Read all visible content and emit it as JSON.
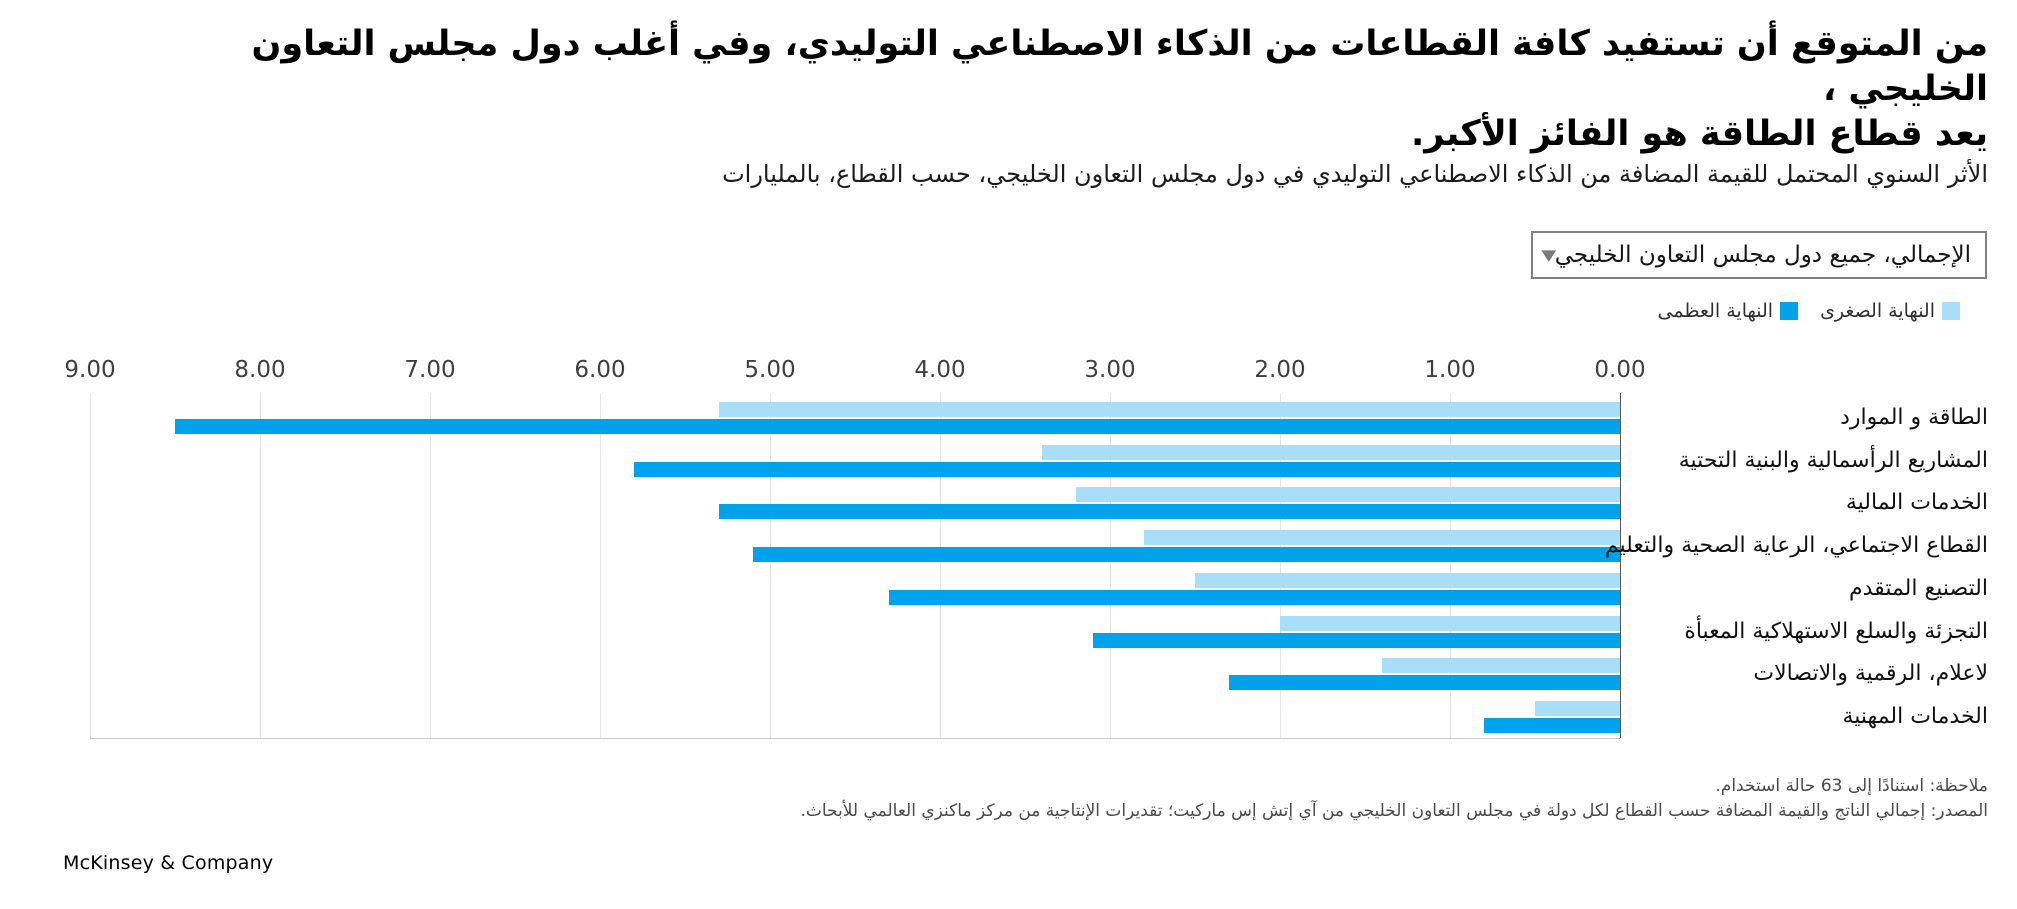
{
  "title": {
    "line1": "من المتوقع أن تستفيد كافة القطاعات من الذكاء الاصطناعي التوليدي، وفي أغلب دول مجلس التعاون الخليجي ،",
    "line2": "يعد قطاع الطاقة هو الفائز الأكبر."
  },
  "subtitle": "الأثر السنوي المحتمل للقيمة المضافة من الذكاء الاصطناعي التوليدي في دول مجلس التعاون الخليجي، حسب القطاع، بالمليارات",
  "dropdown": {
    "selected": "الإجمالي، جميع دول مجلس التعاون الخليجي",
    "arrow": "▼"
  },
  "legend": [
    {
      "label": "النهاية الصغرى",
      "color": "#a9def8"
    },
    {
      "label": "النهاية العظمى",
      "color": "#00a2e9"
    }
  ],
  "chart_data": {
    "type": "bar",
    "orientation": "horizontal-rtl",
    "title": "الأثر السنوي المحتمل للقيمة المضافة من الذكاء الاصطناعي التوليدي في دول مجلس التعاون الخليجي، حسب القطاع، بالمليارات",
    "categories": [
      "الطاقة و الموارد",
      "المشاريع الرأسمالية والبنية التحتية",
      "الخدمات المالية",
      "القطاع الاجتماعي، الرعاية الصحية والتعليم",
      "التصنيع المتقدم",
      "التجزئة والسلع الاستهلاكية المعبأة",
      "لاعلام، الرقمية والاتصالات",
      "الخدمات المهنية"
    ],
    "series": [
      {
        "name": "النهاية الصغرى",
        "color": "#a9def8",
        "values": [
          5.3,
          3.4,
          3.2,
          2.8,
          2.5,
          2.0,
          1.4,
          0.5
        ]
      },
      {
        "name": "النهاية العظمى",
        "color": "#00a2e9",
        "values": [
          8.5,
          5.8,
          5.3,
          5.1,
          4.3,
          3.1,
          2.3,
          0.8
        ]
      }
    ],
    "xlim": [
      0,
      9
    ],
    "x_ticks": [
      "9.00",
      "8.00",
      "7.00",
      "6.00",
      "5.00",
      "4.00",
      "3.00",
      "2.00",
      "1.00",
      "0.00"
    ],
    "grid": true,
    "legend_position": "top-right"
  },
  "notes": {
    "note": "ملاحظة: استنادًا إلى 63 حالة استخدام.",
    "source": "المصدر: إجمالي الناتج والقيمة المضافة حسب القطاع لكل دولة في مجلس التعاون الخليجي من آي إتش إس ماركيت؛ تقديرات الإنتاجية من مركز ماكنزي العالمي للأبحاث."
  },
  "footer": {
    "brand": "McKinsey & Company"
  }
}
